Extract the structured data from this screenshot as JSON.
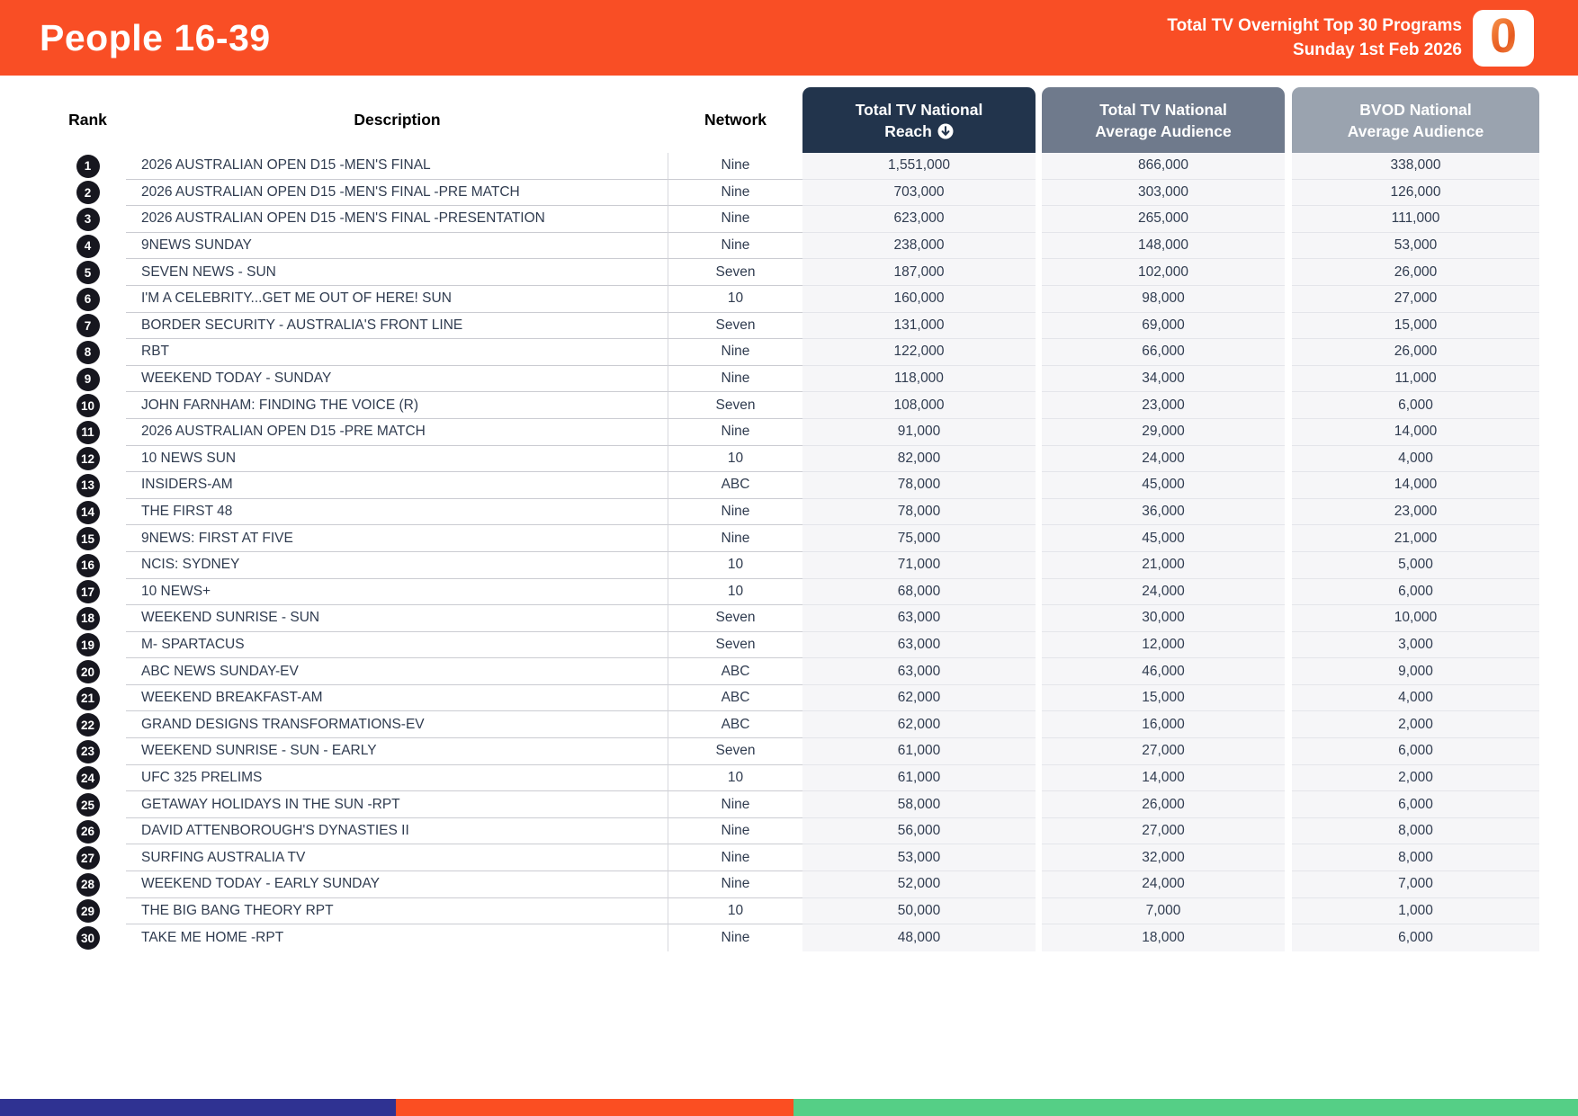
{
  "header": {
    "title": "People 16-39",
    "subtitle_line1": "Total TV Overnight Top 30 Programs",
    "subtitle_line2": "Sunday 1st Feb 2026",
    "logo_glyph": "0",
    "banner_color": "#F94E25"
  },
  "table": {
    "columns": {
      "rank": "Rank",
      "description": "Description",
      "network": "Network",
      "reach_line1": "Total TV National",
      "reach_line2": "Reach",
      "reach_sort_icon": "circle-arrow-down",
      "avg_line1": "Total TV National",
      "avg_line2": "Average Audience",
      "bvod_line1": "BVOD National",
      "bvod_line2": "Average Audience"
    },
    "header_colors": {
      "reach": "#22344C",
      "avg_audience": "#6F7A8C",
      "bvod": "#9AA3AF"
    },
    "rows": [
      {
        "rank": "1",
        "description": "2026 AUSTRALIAN OPEN D15 -MEN'S FINAL",
        "network": "Nine",
        "reach": "1,551,000",
        "avg_audience": "866,000",
        "bvod": "338,000"
      },
      {
        "rank": "2",
        "description": "2026 AUSTRALIAN OPEN D15 -MEN'S FINAL -PRE MATCH",
        "network": "Nine",
        "reach": "703,000",
        "avg_audience": "303,000",
        "bvod": "126,000"
      },
      {
        "rank": "3",
        "description": "2026 AUSTRALIAN OPEN D15 -MEN'S FINAL -PRESENTATION",
        "network": "Nine",
        "reach": "623,000",
        "avg_audience": "265,000",
        "bvod": "111,000"
      },
      {
        "rank": "4",
        "description": "9NEWS SUNDAY",
        "network": "Nine",
        "reach": "238,000",
        "avg_audience": "148,000",
        "bvod": "53,000"
      },
      {
        "rank": "5",
        "description": "SEVEN NEWS - SUN",
        "network": "Seven",
        "reach": "187,000",
        "avg_audience": "102,000",
        "bvod": "26,000"
      },
      {
        "rank": "6",
        "description": "I'M A CELEBRITY...GET ME OUT OF HERE! SUN",
        "network": "10",
        "reach": "160,000",
        "avg_audience": "98,000",
        "bvod": "27,000"
      },
      {
        "rank": "7",
        "description": "BORDER SECURITY - AUSTRALIA'S FRONT LINE",
        "network": "Seven",
        "reach": "131,000",
        "avg_audience": "69,000",
        "bvod": "15,000"
      },
      {
        "rank": "8",
        "description": "RBT",
        "network": "Nine",
        "reach": "122,000",
        "avg_audience": "66,000",
        "bvod": "26,000"
      },
      {
        "rank": "9",
        "description": "WEEKEND TODAY - SUNDAY",
        "network": "Nine",
        "reach": "118,000",
        "avg_audience": "34,000",
        "bvod": "11,000"
      },
      {
        "rank": "10",
        "description": "JOHN FARNHAM: FINDING THE VOICE (R)",
        "network": "Seven",
        "reach": "108,000",
        "avg_audience": "23,000",
        "bvod": "6,000"
      },
      {
        "rank": "11",
        "description": "2026 AUSTRALIAN OPEN D15 -PRE MATCH",
        "network": "Nine",
        "reach": "91,000",
        "avg_audience": "29,000",
        "bvod": "14,000"
      },
      {
        "rank": "12",
        "description": "10 NEWS SUN",
        "network": "10",
        "reach": "82,000",
        "avg_audience": "24,000",
        "bvod": "4,000"
      },
      {
        "rank": "13",
        "description": "INSIDERS-AM",
        "network": "ABC",
        "reach": "78,000",
        "avg_audience": "45,000",
        "bvod": "14,000"
      },
      {
        "rank": "14",
        "description": "THE FIRST 48",
        "network": "Nine",
        "reach": "78,000",
        "avg_audience": "36,000",
        "bvod": "23,000"
      },
      {
        "rank": "15",
        "description": "9NEWS: FIRST AT FIVE",
        "network": "Nine",
        "reach": "75,000",
        "avg_audience": "45,000",
        "bvod": "21,000"
      },
      {
        "rank": "16",
        "description": "NCIS: SYDNEY",
        "network": "10",
        "reach": "71,000",
        "avg_audience": "21,000",
        "bvod": "5,000"
      },
      {
        "rank": "17",
        "description": "10 NEWS+",
        "network": "10",
        "reach": "68,000",
        "avg_audience": "24,000",
        "bvod": "6,000"
      },
      {
        "rank": "18",
        "description": "WEEKEND SUNRISE - SUN",
        "network": "Seven",
        "reach": "63,000",
        "avg_audience": "30,000",
        "bvod": "10,000"
      },
      {
        "rank": "19",
        "description": "M- SPARTACUS",
        "network": "Seven",
        "reach": "63,000",
        "avg_audience": "12,000",
        "bvod": "3,000"
      },
      {
        "rank": "20",
        "description": "ABC NEWS SUNDAY-EV",
        "network": "ABC",
        "reach": "63,000",
        "avg_audience": "46,000",
        "bvod": "9,000"
      },
      {
        "rank": "21",
        "description": "WEEKEND BREAKFAST-AM",
        "network": "ABC",
        "reach": "62,000",
        "avg_audience": "15,000",
        "bvod": "4,000"
      },
      {
        "rank": "22",
        "description": "GRAND DESIGNS TRANSFORMATIONS-EV",
        "network": "ABC",
        "reach": "62,000",
        "avg_audience": "16,000",
        "bvod": "2,000"
      },
      {
        "rank": "23",
        "description": "WEEKEND SUNRISE - SUN - EARLY",
        "network": "Seven",
        "reach": "61,000",
        "avg_audience": "27,000",
        "bvod": "6,000"
      },
      {
        "rank": "24",
        "description": "UFC 325 PRELIMS",
        "network": "10",
        "reach": "61,000",
        "avg_audience": "14,000",
        "bvod": "2,000"
      },
      {
        "rank": "25",
        "description": "GETAWAY HOLIDAYS IN THE SUN -RPT",
        "network": "Nine",
        "reach": "58,000",
        "avg_audience": "26,000",
        "bvod": "6,000"
      },
      {
        "rank": "26",
        "description": "DAVID ATTENBOROUGH'S DYNASTIES II",
        "network": "Nine",
        "reach": "56,000",
        "avg_audience": "27,000",
        "bvod": "8,000"
      },
      {
        "rank": "27",
        "description": "SURFING AUSTRALIA TV",
        "network": "Nine",
        "reach": "53,000",
        "avg_audience": "32,000",
        "bvod": "8,000"
      },
      {
        "rank": "28",
        "description": "WEEKEND TODAY - EARLY SUNDAY",
        "network": "Nine",
        "reach": "52,000",
        "avg_audience": "24,000",
        "bvod": "7,000"
      },
      {
        "rank": "29",
        "description": "THE BIG BANG THEORY RPT",
        "network": "10",
        "reach": "50,000",
        "avg_audience": "7,000",
        "bvod": "1,000"
      },
      {
        "rank": "30",
        "description": "TAKE ME HOME -RPT",
        "network": "Nine",
        "reach": "48,000",
        "avg_audience": "18,000",
        "bvod": "6,000"
      }
    ]
  },
  "footer_bar": {
    "segments": [
      {
        "name": "blue",
        "color": "#2F3292",
        "width_pct": 25.1
      },
      {
        "name": "orange",
        "color": "#FB4E22",
        "width_pct": 25.2
      },
      {
        "name": "green",
        "color": "#55CF86",
        "width_pct": 49.7
      }
    ]
  }
}
